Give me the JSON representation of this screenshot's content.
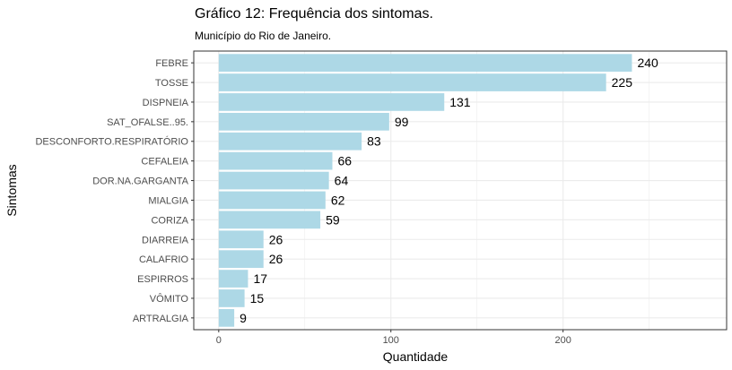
{
  "chart_data": {
    "type": "bar",
    "orientation": "horizontal",
    "title": "Gráfico 12: Frequência dos sintomas.",
    "subtitle": "Município do Rio de Janeiro.",
    "xlabel": "Quantidade",
    "ylabel": "Sintomas",
    "categories": [
      "FEBRE",
      "TOSSE",
      "DISPNEIA",
      "SAT_OFALSE..95.",
      "DESCONFORTO.RESPIRATÓRIO",
      "CEFALEIA",
      "DOR.NA.GARGANTA",
      "MIALGIA",
      "CORIZA",
      "DIARREIA",
      "CALAFRIO",
      "ESPIRROS",
      "VÔMITO",
      "ARTRALGIA"
    ],
    "values": [
      240,
      225,
      131,
      99,
      83,
      66,
      64,
      62,
      59,
      26,
      26,
      17,
      15,
      9
    ],
    "xlim": [
      -14.5,
      295
    ],
    "xticks": [
      0,
      100,
      200
    ],
    "grid": true,
    "bar_color": "#add8e6",
    "panel_border_color": "#333333",
    "grid_color": "#ebebeb"
  }
}
